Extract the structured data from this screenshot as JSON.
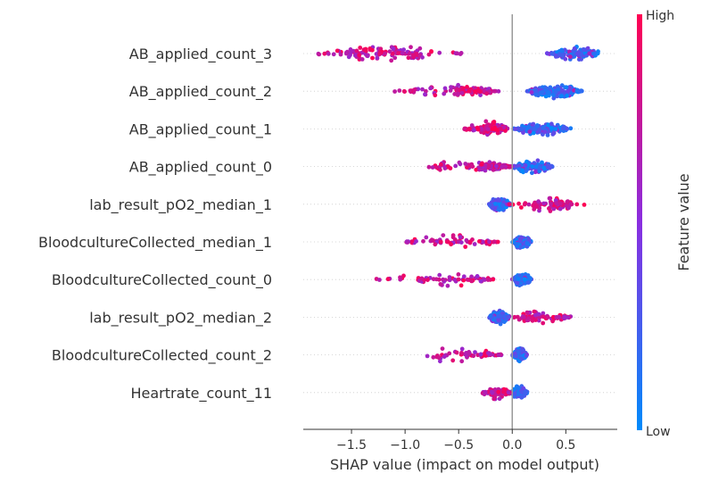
{
  "chart_data": {
    "type": "scatter",
    "subtype": "shap-beeswarm",
    "title": "",
    "xlabel": "SHAP value (impact on model output)",
    "xlim": [
      -1.95,
      0.98
    ],
    "xticks": [
      -1.5,
      -1.0,
      -0.5,
      0.0,
      0.5
    ],
    "xtick_labels": [
      "−1.5",
      "−1.0",
      "−0.5",
      "0.0",
      "0.5"
    ],
    "zero_line": 0.0,
    "colorbar": {
      "title": "Feature value",
      "high_label": "High",
      "low_label": "Low",
      "high_color": "#ff0052",
      "mid_color": "#8a2ee0",
      "low_color": "#008bfb"
    },
    "features": [
      {
        "name": "AB_applied_count_3",
        "high_range": [
          -1.82,
          -0.45
        ],
        "low_range": [
          0.32,
          0.84
        ],
        "core": [
          -1.55,
          -0.85
        ],
        "high_density": 0.8
      },
      {
        "name": "AB_applied_count_2",
        "high_range": [
          -1.1,
          -0.1
        ],
        "low_range": [
          0.14,
          0.65
        ],
        "core": [
          -0.55,
          -0.2
        ],
        "high_density": 0.8
      },
      {
        "name": "AB_applied_count_1",
        "high_range": [
          -0.45,
          -0.02
        ],
        "low_range": [
          0.0,
          0.55
        ],
        "core": [
          -0.25,
          -0.05
        ],
        "high_density": 0.9
      },
      {
        "name": "AB_applied_count_0",
        "high_range": [
          -0.8,
          -0.02
        ],
        "low_range": [
          0.0,
          0.38
        ],
        "core": [
          -0.3,
          0.0
        ],
        "high_density": 1.0
      },
      {
        "name": "lab_result_pO2_median_1",
        "high_range": [
          -0.05,
          0.7
        ],
        "low_range": [
          -0.22,
          -0.02
        ],
        "core": [
          0.2,
          0.55
        ],
        "high_density": 0.6
      },
      {
        "name": "BloodcultureCollected_median_1",
        "high_range": [
          -1.0,
          -0.12
        ],
        "low_range": [
          0.0,
          0.18
        ],
        "core": [
          -1.0,
          -0.12
        ],
        "high_density": 0.45
      },
      {
        "name": "BloodcultureCollected_count_0",
        "high_range": [
          -1.28,
          -0.15
        ],
        "low_range": [
          0.0,
          0.18
        ],
        "core": [
          -0.9,
          -0.15
        ],
        "high_density": 0.45
      },
      {
        "name": "lab_result_pO2_median_2",
        "high_range": [
          0.0,
          0.55
        ],
        "low_range": [
          -0.22,
          -0.02
        ],
        "core": [
          0.1,
          0.5
        ],
        "high_density": 0.55
      },
      {
        "name": "BloodcultureCollected_count_2",
        "high_range": [
          -1.0,
          -0.1
        ],
        "low_range": [
          0.0,
          0.14
        ],
        "core": [
          -0.7,
          -0.1
        ],
        "high_density": 0.4
      },
      {
        "name": "Heartrate_count_11",
        "high_range": [
          -0.28,
          -0.02
        ],
        "low_range": [
          -0.02,
          0.14
        ],
        "core": [
          -0.2,
          -0.02
        ],
        "high_density": 0.7
      }
    ]
  }
}
